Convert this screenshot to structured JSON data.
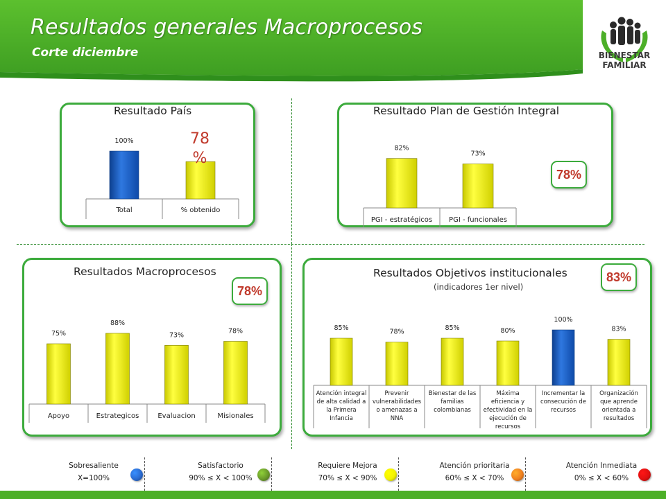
{
  "header": {
    "title": "Resultados generales Macroprocesos",
    "subtitle": "Corte diciembre",
    "logo_line1": "BIENESTAR",
    "logo_line2": "FAMILIAR",
    "colors": {
      "band": "#4cae2a",
      "band_dark": "#2f8f1c"
    }
  },
  "panels": {
    "pais": {
      "title": "Resultado País",
      "big_value": "78",
      "big_unit": "%"
    },
    "pgi": {
      "title": "Resultado Plan de Gestión Integral",
      "badge": "78%"
    },
    "macro": {
      "title": "Resultados Macroprocesos",
      "badge": "78%"
    },
    "objetivos": {
      "title": "Resultados Objetivos institucionales",
      "subtitle": "(indicadores 1er nivel)",
      "badge": "83%"
    }
  },
  "chart_data": [
    {
      "id": "pais",
      "type": "bar",
      "categories": [
        "Total",
        "% obtenido"
      ],
      "values": [
        100,
        78
      ],
      "data_labels": [
        "100%",
        ""
      ],
      "bar_colors": [
        "#1a5bb8",
        "#e8e800"
      ],
      "ylim": [
        0,
        100
      ]
    },
    {
      "id": "pgi",
      "type": "bar",
      "categories": [
        "PGI - estratégicos",
        "PGI - funcionales"
      ],
      "values": [
        82,
        73
      ],
      "data_labels": [
        "82%",
        "73%"
      ],
      "bar_colors": [
        "#e8e800",
        "#e8e800"
      ],
      "ylim": [
        0,
        100
      ]
    },
    {
      "id": "macro",
      "type": "bar",
      "categories": [
        "Apoyo",
        "Estrategicos",
        "Evaluacion",
        "Misionales"
      ],
      "values": [
        75,
        88,
        73,
        78
      ],
      "data_labels": [
        "75%",
        "88%",
        "73%",
        "78%"
      ],
      "bar_colors": [
        "#e8e800",
        "#e8e800",
        "#e8e800",
        "#e8e800"
      ],
      "ylim": [
        0,
        100
      ]
    },
    {
      "id": "objetivos",
      "type": "bar",
      "categories": [
        "Atención integral de alta calidad a la Primera Infancia",
        "Prevenir vulnerabilidades o amenazas a NNA",
        "Bienestar de las familias colombianas",
        "Máxima eficiencia y efectividad en la ejecución de recursos",
        "Incrementar la consecución de recursos",
        "Organización que aprende orientada a resultados"
      ],
      "values": [
        85,
        78,
        85,
        80,
        100,
        83
      ],
      "data_labels": [
        "85%",
        "78%",
        "85%",
        "80%",
        "100%",
        "83%"
      ],
      "bar_colors": [
        "#e8e800",
        "#e8e800",
        "#e8e800",
        "#e8e800",
        "#1a5bb8",
        "#e8e800"
      ],
      "ylim": [
        0,
        100
      ]
    }
  ],
  "legend": [
    {
      "name": "Sobresaliente",
      "range": "X=100%",
      "color": "#2a6bd1"
    },
    {
      "name": "Satisfactorio",
      "range": "90% ≤ X < 100%",
      "color": "#6a9a2a"
    },
    {
      "name": "Requiere Mejora",
      "range": "70% ≤ X < 90%",
      "color": "#f2f200"
    },
    {
      "name": "Atención prioritaria",
      "range": "60% ≤ X < 70%",
      "color": "#f08020"
    },
    {
      "name": "Atención Inmediata",
      "range": "0% ≤ X < 60%",
      "color": "#e01010"
    }
  ]
}
